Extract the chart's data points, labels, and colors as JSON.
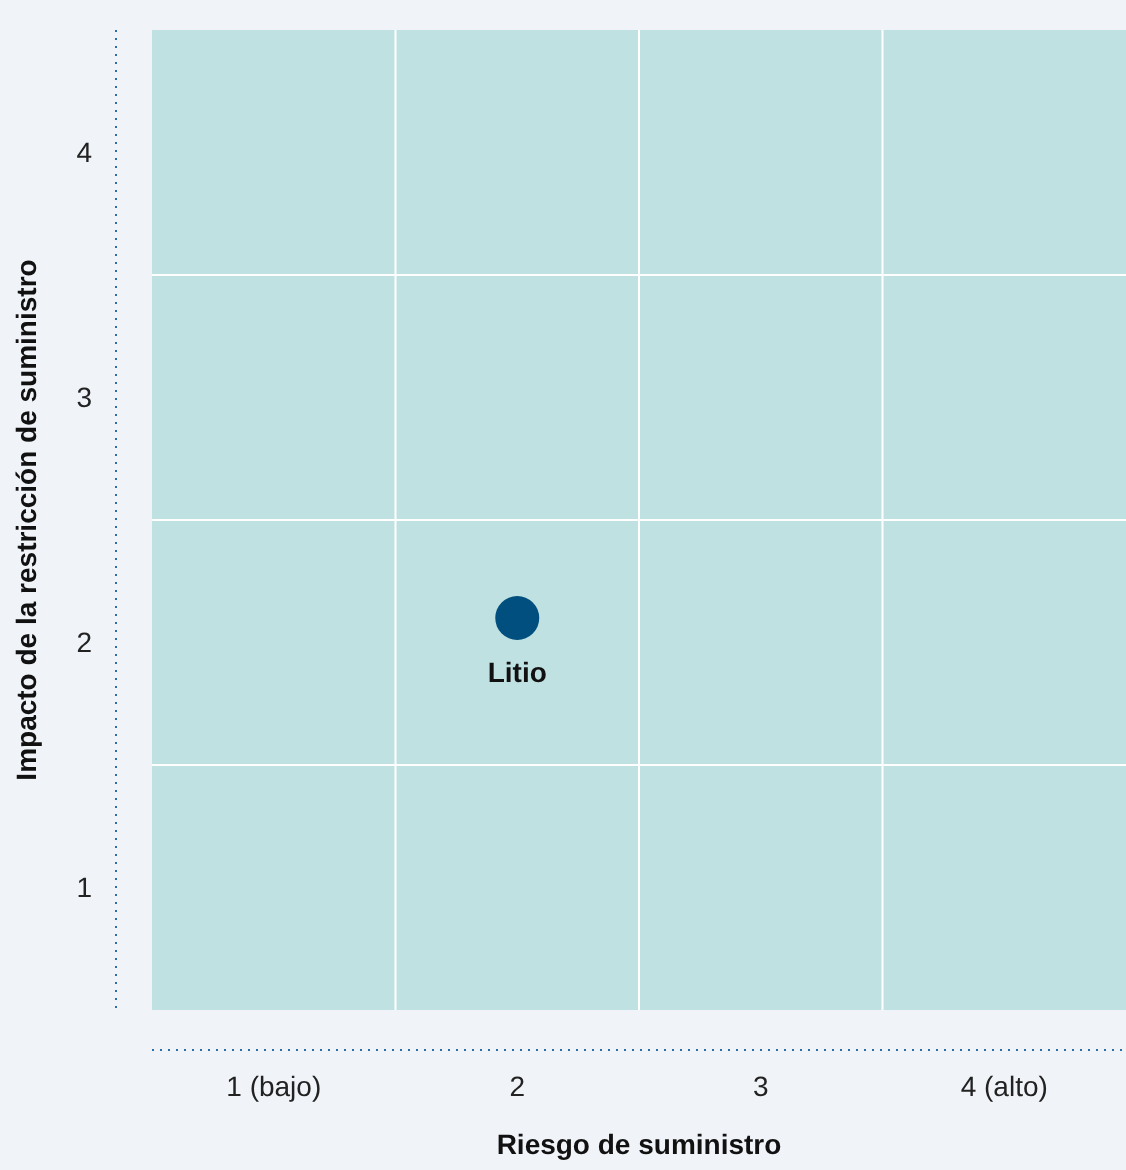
{
  "chart_data": {
    "type": "scatter",
    "xlabel": "Riesgo de suministro",
    "ylabel": "Impacto de la restricción de suministro",
    "xlim": [
      0.5,
      4.5
    ],
    "xticks": [
      {
        "value": 1,
        "label": "1 (bajo)"
      },
      {
        "value": 1.5,
        "label": null
      },
      2,
      {
        "value": 2.5,
        "label": null
      },
      3,
      {
        "value": 3.5,
        "label": null
      },
      {
        "value": 4,
        "label": "4 (alto)"
      }
    ],
    "ylim": [
      0.5,
      4.5
    ],
    "yticks": [
      1,
      {
        "value": 1.5,
        "label": null
      },
      2,
      {
        "value": 2.5,
        "label": null
      },
      3,
      {
        "value": 3.5,
        "label": null
      },
      4
    ],
    "grid": true,
    "marker": "circle",
    "series": [
      {
        "name": "Litio",
        "color": "#004f7f",
        "x": [
          2
        ],
        "values": [
          2.1
        ]
      }
    ]
  }
}
